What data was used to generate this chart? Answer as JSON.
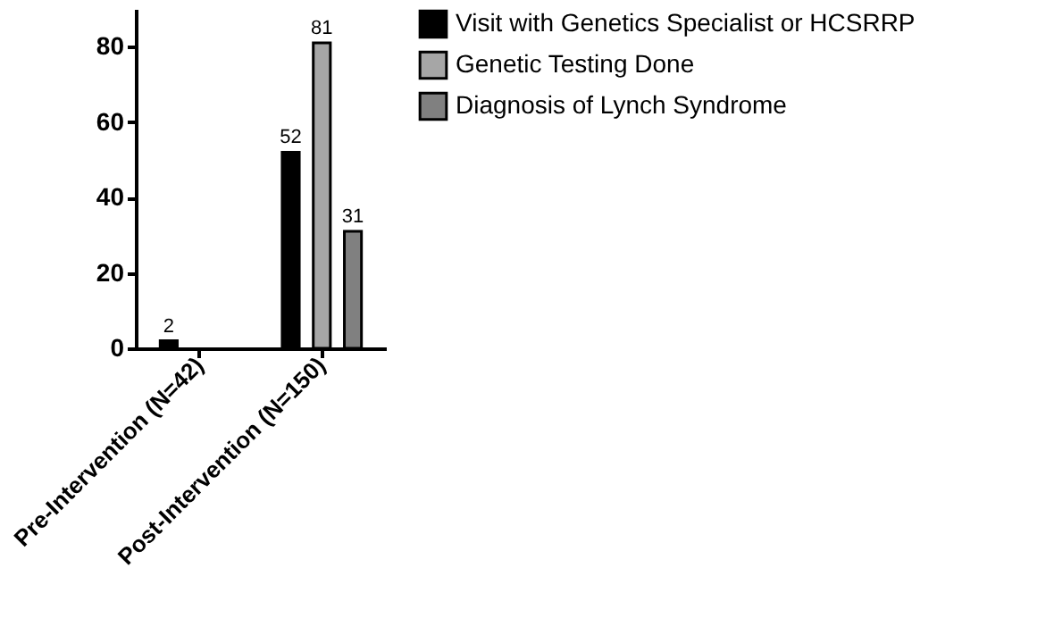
{
  "chart_data": {
    "type": "bar",
    "categories": [
      "Pre-Intervention (N=42)",
      "Post-Intervention (N=150)"
    ],
    "series": [
      {
        "name": "Visit with Genetics Specialist or HCSRRP",
        "color": "#000000",
        "values": [
          2,
          52
        ],
        "value_labels": [
          "2",
          "52"
        ]
      },
      {
        "name": "Genetic Testing Done",
        "color": "#a6a6a6",
        "values": [
          null,
          81
        ],
        "value_labels": [
          null,
          "81"
        ]
      },
      {
        "name": "Diagnosis of Lynch Syndrome",
        "color": "#808080",
        "values": [
          null,
          31
        ],
        "value_labels": [
          null,
          "31"
        ]
      }
    ],
    "ylim": [
      0,
      90
    ],
    "yticks": [
      0,
      20,
      40,
      60,
      80
    ],
    "grid": false,
    "legend": "right"
  }
}
